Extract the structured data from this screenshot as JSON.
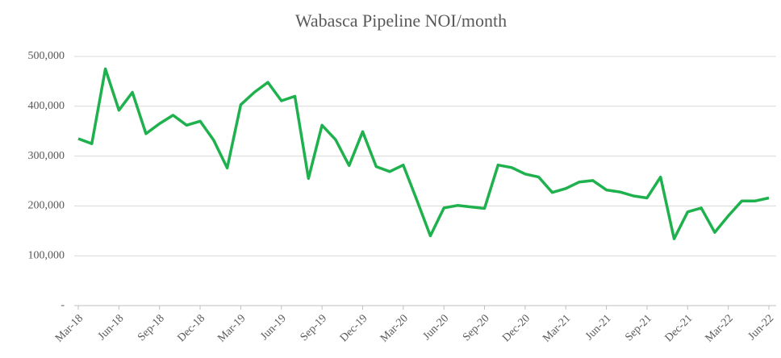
{
  "chart_data": {
    "type": "line",
    "title": "Wabasca Pipeline NOI/month",
    "categories": [
      "Mar-18",
      null,
      null,
      "Jun-18",
      null,
      null,
      "Sep-18",
      null,
      null,
      "Dec-18",
      null,
      null,
      "Mar-19",
      null,
      null,
      "Jun-19",
      null,
      null,
      "Sep-19",
      null,
      null,
      "Dec-19",
      null,
      null,
      "Mar-20",
      null,
      null,
      "Jun-20",
      null,
      null,
      "Sep-20",
      null,
      null,
      "Dec-20",
      null,
      null,
      "Mar-21",
      null,
      null,
      "Jun-21",
      null,
      null,
      "Sep-21",
      null,
      null,
      "Dec-21",
      null,
      null,
      "Mar-22",
      null,
      null,
      "Jun-22"
    ],
    "series": [
      {
        "name": "NOI",
        "color": "#1fb14d",
        "values": [
          335000,
          325000,
          475000,
          392000,
          428000,
          345000,
          365000,
          382000,
          362000,
          370000,
          332000,
          276000,
          403000,
          428000,
          448000,
          411000,
          420000,
          255000,
          362000,
          333000,
          281000,
          349000,
          279000,
          269000,
          282000,
          212000,
          140000,
          196000,
          201000,
          198000,
          195000,
          282000,
          277000,
          264000,
          258000,
          227000,
          235000,
          248000,
          251000,
          232000,
          228000,
          220000,
          216000,
          258000,
          134000,
          188000,
          196000,
          147000,
          180000,
          210000,
          210000,
          216000
        ]
      }
    ],
    "ylim": [
      0,
      500000
    ],
    "yticks": [
      {
        "value": 0,
        "label": "-"
      },
      {
        "value": 100000,
        "label": "100,000"
      },
      {
        "value": 200000,
        "label": "200,000"
      },
      {
        "value": 300000,
        "label": "300,000"
      },
      {
        "value": 400000,
        "label": "400,000"
      },
      {
        "value": 500000,
        "label": "500,000"
      }
    ],
    "grid": true
  }
}
